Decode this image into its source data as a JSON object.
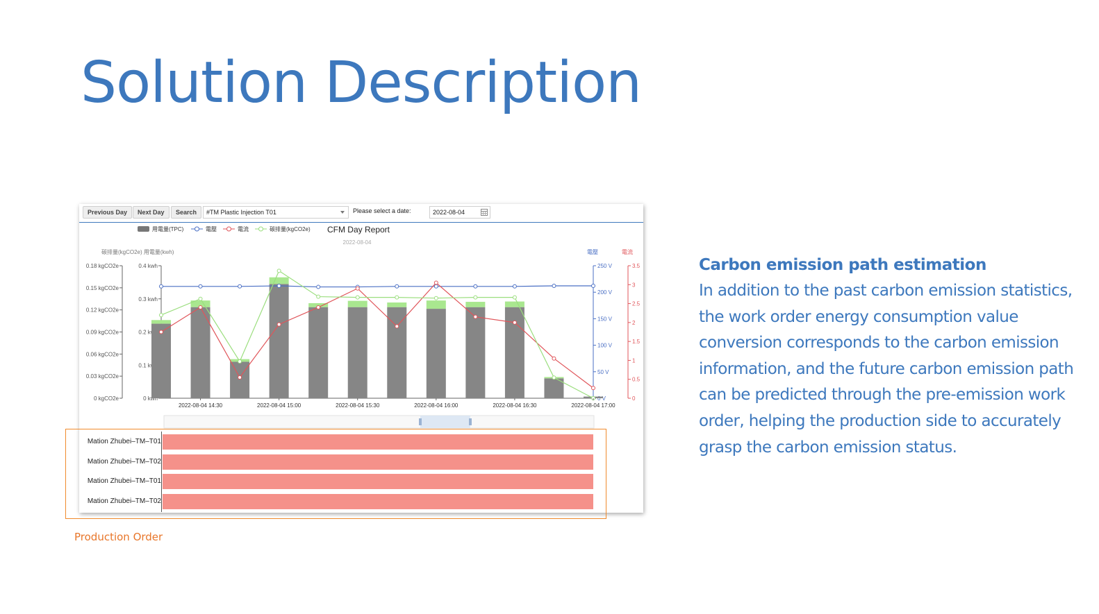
{
  "slide": {
    "title": "Solution Description",
    "caption": "Production Order",
    "description": {
      "heading": "Carbon emission path estimation",
      "body": "In addition to the past carbon emission statistics, the work order energy consumption value conversion corresponds to the carbon emission information, and the future carbon emission path can be predicted through the pre-emission work order, helping the production side to accurately grasp the carbon emission status."
    }
  },
  "toolbar": {
    "previous_day": "Previous Day",
    "next_day": "Next Day",
    "search": "Search",
    "machine_select": "#TM Plastic Injection T01",
    "date_label": "Please select a date:",
    "date_value": "2022-08-04"
  },
  "chart_data": {
    "type": "bar",
    "title": "CFM Day Report",
    "subtitle": "2022-08-04",
    "legend": [
      "用電量(TPC)",
      "電壓",
      "電流",
      "碳排量(kgCO2e)"
    ],
    "legend_placement": "top-center",
    "left_axis_label": "碳排量(kgCO2e) 用電量(kwh)",
    "right_axis_labels": [
      "電壓",
      "電流"
    ],
    "x_ticks": [
      "2022-08-04 14:30",
      "2022-08-04 15:00",
      "2022-08-04 15:30",
      "2022-08-04 16:00",
      "2022-08-04 16:30",
      "2022-08-04 17:00"
    ],
    "y_carbon_ticks": [
      "0 kgCO2e",
      "0.03 kgCO2e",
      "0.06 kgCO2e",
      "0.09 kgCO2e",
      "0.12 kgCO2e",
      "0.15 kgCO2e",
      "0.18 kgCO2e"
    ],
    "y_energy_ticks": [
      "0 kwh",
      "0.1 kwh",
      "0.2 kwh",
      "0.3 kwh",
      "0.4 kwh"
    ],
    "y_voltage_ticks": [
      "0 V",
      "50 V",
      "100 V",
      "150 V",
      "200 V",
      "250 V"
    ],
    "y_current_ticks": [
      "0",
      "0.5",
      "1",
      "1.5",
      "2",
      "2.5",
      "3",
      "3.5"
    ],
    "ylim_energy": [
      0,
      0.4
    ],
    "ylim_carbon": [
      0,
      0.18
    ],
    "ylim_voltage": [
      0,
      250
    ],
    "ylim_current": [
      0,
      3.5
    ],
    "series": [
      {
        "name": "用電量(TPC)",
        "kind": "bar",
        "axis": "energy",
        "color": "#868686",
        "values": [
          0.225,
          0.275,
          0.11,
          0.345,
          0.275,
          0.275,
          0.275,
          0.27,
          0.275,
          0.275,
          0.06,
          0.005
        ]
      },
      {
        "name": "碳排量(kgCO2e)",
        "kind": "bar-cap",
        "axis": "energy",
        "color": "#a9e78f",
        "values": [
          0.011,
          0.02,
          0.008,
          0.02,
          0.012,
          0.019,
          0.014,
          0.025,
          0.016,
          0.017,
          0.004,
          0
        ]
      },
      {
        "name": "電壓",
        "kind": "line",
        "axis": "voltage",
        "color": "#4a6fc4",
        "values": [
          211,
          211,
          211,
          212,
          210,
          210,
          211,
          211,
          211,
          211,
          212,
          212
        ]
      },
      {
        "name": "電流",
        "kind": "line",
        "axis": "current",
        "color": "#e0555a",
        "values": [
          1.75,
          2.4,
          0.55,
          1.95,
          2.4,
          2.9,
          1.9,
          3.05,
          2.15,
          2.0,
          1.05,
          0.27
        ]
      },
      {
        "name": "碳排量(kgCO2e)",
        "kind": "line",
        "axis": "carbon",
        "color": "#9bde7e",
        "values": [
          0.113,
          0.135,
          0.05,
          0.173,
          0.138,
          0.137,
          0.137,
          0.136,
          0.137,
          0.137,
          0.028,
          0.0
        ]
      }
    ],
    "grid": false
  },
  "orders": [
    {
      "label": "Mation Zhubei–TM–T01",
      "progress": 1.0
    },
    {
      "label": "Mation Zhubei–TM–T02",
      "progress": 1.0
    },
    {
      "label": "Mation Zhubei–TM–T01",
      "progress": 1.0
    },
    {
      "label": "Mation Zhubei–TM–T02",
      "progress": 1.0
    }
  ],
  "colors": {
    "accent": "#3d78bd",
    "highlight": "#f08a2c",
    "order_bar": "#f5918a"
  }
}
